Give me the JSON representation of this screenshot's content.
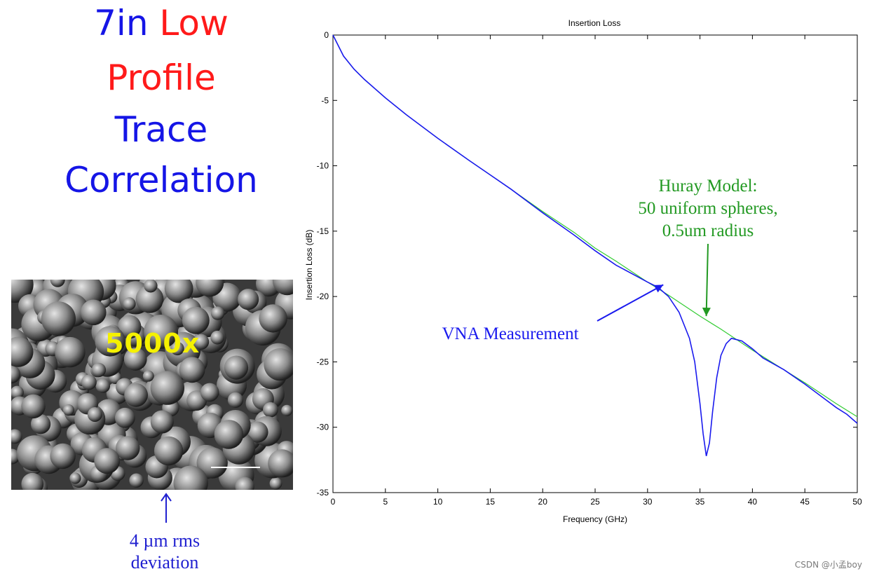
{
  "heading": {
    "line1_a": "7in",
    "line1_b": "Low",
    "line2": "Profile",
    "line3": "Trace",
    "line4": "Correlation"
  },
  "sem_image": {
    "magnification": "5000x",
    "caption_line1": "4 µm rms",
    "caption_line2": "deviation"
  },
  "chart_data": {
    "type": "line",
    "title": "Insertion Loss",
    "xlabel": "Frequency (GHz)",
    "ylabel": "Insertion Loss (dB)",
    "xlim": [
      0,
      50
    ],
    "ylim": [
      -35,
      0
    ],
    "xticks": [
      0,
      5,
      10,
      15,
      20,
      25,
      30,
      35,
      40,
      45,
      50
    ],
    "yticks": [
      0,
      -5,
      -10,
      -15,
      -20,
      -25,
      -30,
      -35
    ],
    "grid": false,
    "series": [
      {
        "name": "Huray Model",
        "color": "#33cc33",
        "x": [
          0,
          1,
          2,
          3,
          5,
          7,
          10,
          13,
          15,
          17,
          20,
          23,
          25,
          27,
          30,
          32,
          35,
          37,
          40,
          43,
          45,
          48,
          50
        ],
        "y": [
          0,
          -1.6,
          -2.6,
          -3.4,
          -4.8,
          -6.1,
          -7.9,
          -9.6,
          -10.7,
          -11.8,
          -13.5,
          -15.1,
          -16.3,
          -17.3,
          -18.9,
          -19.9,
          -21.5,
          -22.5,
          -24.1,
          -25.6,
          -26.6,
          -28.2,
          -29.2
        ]
      },
      {
        "name": "VNA Measurement",
        "color": "#1a1aee",
        "x": [
          0,
          1,
          2,
          3,
          5,
          7,
          10,
          13,
          15,
          17,
          20,
          23,
          25,
          27,
          30,
          31,
          32,
          33,
          34,
          34.5,
          35,
          35.3,
          35.6,
          35.9,
          36.2,
          36.6,
          37,
          37.5,
          38,
          39,
          40,
          41,
          43,
          45,
          47,
          48,
          49,
          50
        ],
        "y": [
          0,
          -1.6,
          -2.6,
          -3.4,
          -4.8,
          -6.1,
          -7.9,
          -9.6,
          -10.7,
          -11.8,
          -13.6,
          -15.3,
          -16.5,
          -17.6,
          -18.9,
          -19.3,
          -20.0,
          -21.2,
          -23.2,
          -25.0,
          -28.2,
          -30.5,
          -32.2,
          -31.2,
          -28.8,
          -26.2,
          -24.5,
          -23.6,
          -23.2,
          -23.4,
          -24.0,
          -24.7,
          -25.6,
          -26.7,
          -27.9,
          -28.5,
          -29.0,
          -29.7
        ]
      }
    ],
    "annotations": [
      {
        "lines": [
          "Huray Model:",
          "50 uniform spheres,",
          "0.5um radius"
        ],
        "color": "#229922",
        "arrow_to": [
          35.6,
          -21.5
        ]
      },
      {
        "lines": [
          "VNA Measurement"
        ],
        "color": "#1a1aee",
        "arrow_to": [
          31.5,
          -19.1
        ]
      }
    ]
  },
  "watermark": "CSDN @小孟boy"
}
